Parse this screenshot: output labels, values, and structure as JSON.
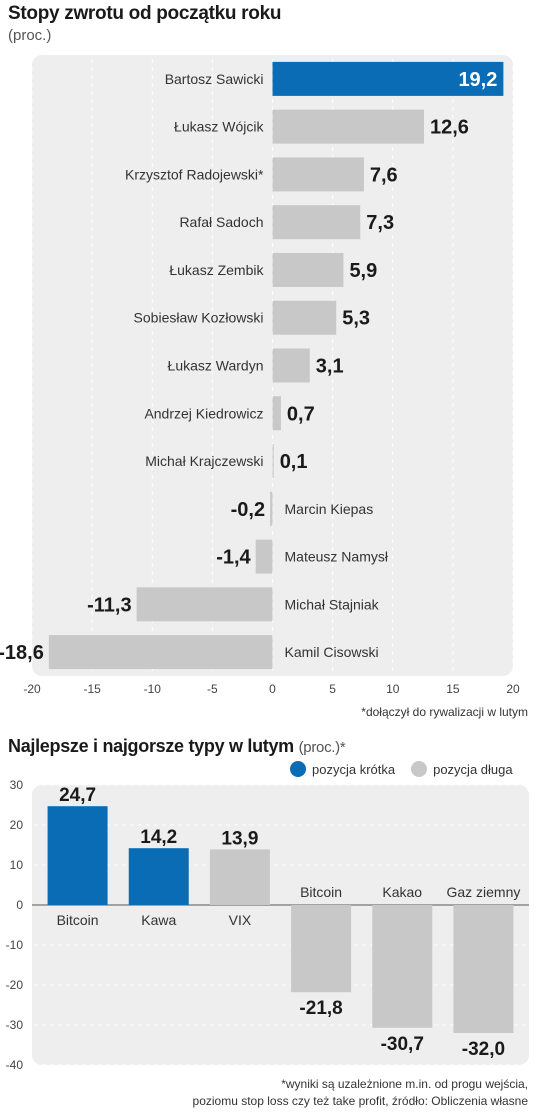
{
  "chart_data": [
    {
      "type": "bar",
      "orientation": "horizontal",
      "title": "Stopy zwrotu od początku roku",
      "subtitle": "(proc.)",
      "note": "*dołączył do rywalizacji w lutym",
      "categories": [
        "Bartosz Sawicki",
        "Łukasz Wójcik",
        "Krzysztof Radojewski*",
        "Rafał Sadoch",
        "Łukasz Zembik",
        "Sobiesław Kozłowski",
        "Łukasz Wardyn",
        "Andrzej Kiedrowicz",
        "Michał Krajczewski",
        "Marcin Kiepas",
        "Mateusz Namysł",
        "Michał Stajniak",
        "Kamil Cisowski"
      ],
      "values": [
        19.2,
        12.6,
        7.6,
        7.3,
        5.9,
        5.3,
        3.1,
        0.7,
        0.1,
        -0.2,
        -1.4,
        -11.3,
        -18.6
      ],
      "value_labels": [
        "19,2",
        "12,6",
        "7,6",
        "7,3",
        "5,9",
        "5,3",
        "3,1",
        "0,7",
        "0,1",
        "-0,2",
        "-1,4",
        "-11,3",
        "-18,6"
      ],
      "xlim": [
        -20,
        20
      ],
      "xticks": [
        -20,
        -15,
        -10,
        -5,
        0,
        5,
        10,
        15,
        20
      ],
      "highlight_index": 0,
      "colors": {
        "highlight": "#0a6cb4",
        "default": "#c8c8c8",
        "panel": "#eeeeee",
        "grid": "#ffffff"
      }
    },
    {
      "type": "bar",
      "orientation": "vertical",
      "title": "Najlepsze i najgorsze typy w lutym",
      "unit": "(proc.)*",
      "categories": [
        "Bitcoin",
        "Kawa",
        "VIX",
        "Bitcoin",
        "Kakao",
        "Gaz ziemny"
      ],
      "values": [
        24.7,
        14.2,
        13.9,
        -21.8,
        -30.7,
        -32.0
      ],
      "value_labels": [
        "24,7",
        "14,2",
        "13,9",
        "-21,8",
        "-30,7",
        "-32,0"
      ],
      "position_types": [
        "short",
        "short",
        "long",
        "long",
        "long",
        "long"
      ],
      "ylim": [
        -40,
        30
      ],
      "yticks": [
        30,
        20,
        10,
        0,
        -10,
        -20,
        -30,
        -40
      ],
      "legend": [
        {
          "key": "short",
          "label": "pozycja krótka",
          "color": "#0a6cb4"
        },
        {
          "key": "long",
          "label": "pozycja długa",
          "color": "#c8c8c8"
        }
      ],
      "footnote": [
        "*wyniki są uzależnione m.in. od progu wejścia,",
        "poziomu stop loss czy też take profit, źródło: Obliczenia własne"
      ]
    }
  ]
}
